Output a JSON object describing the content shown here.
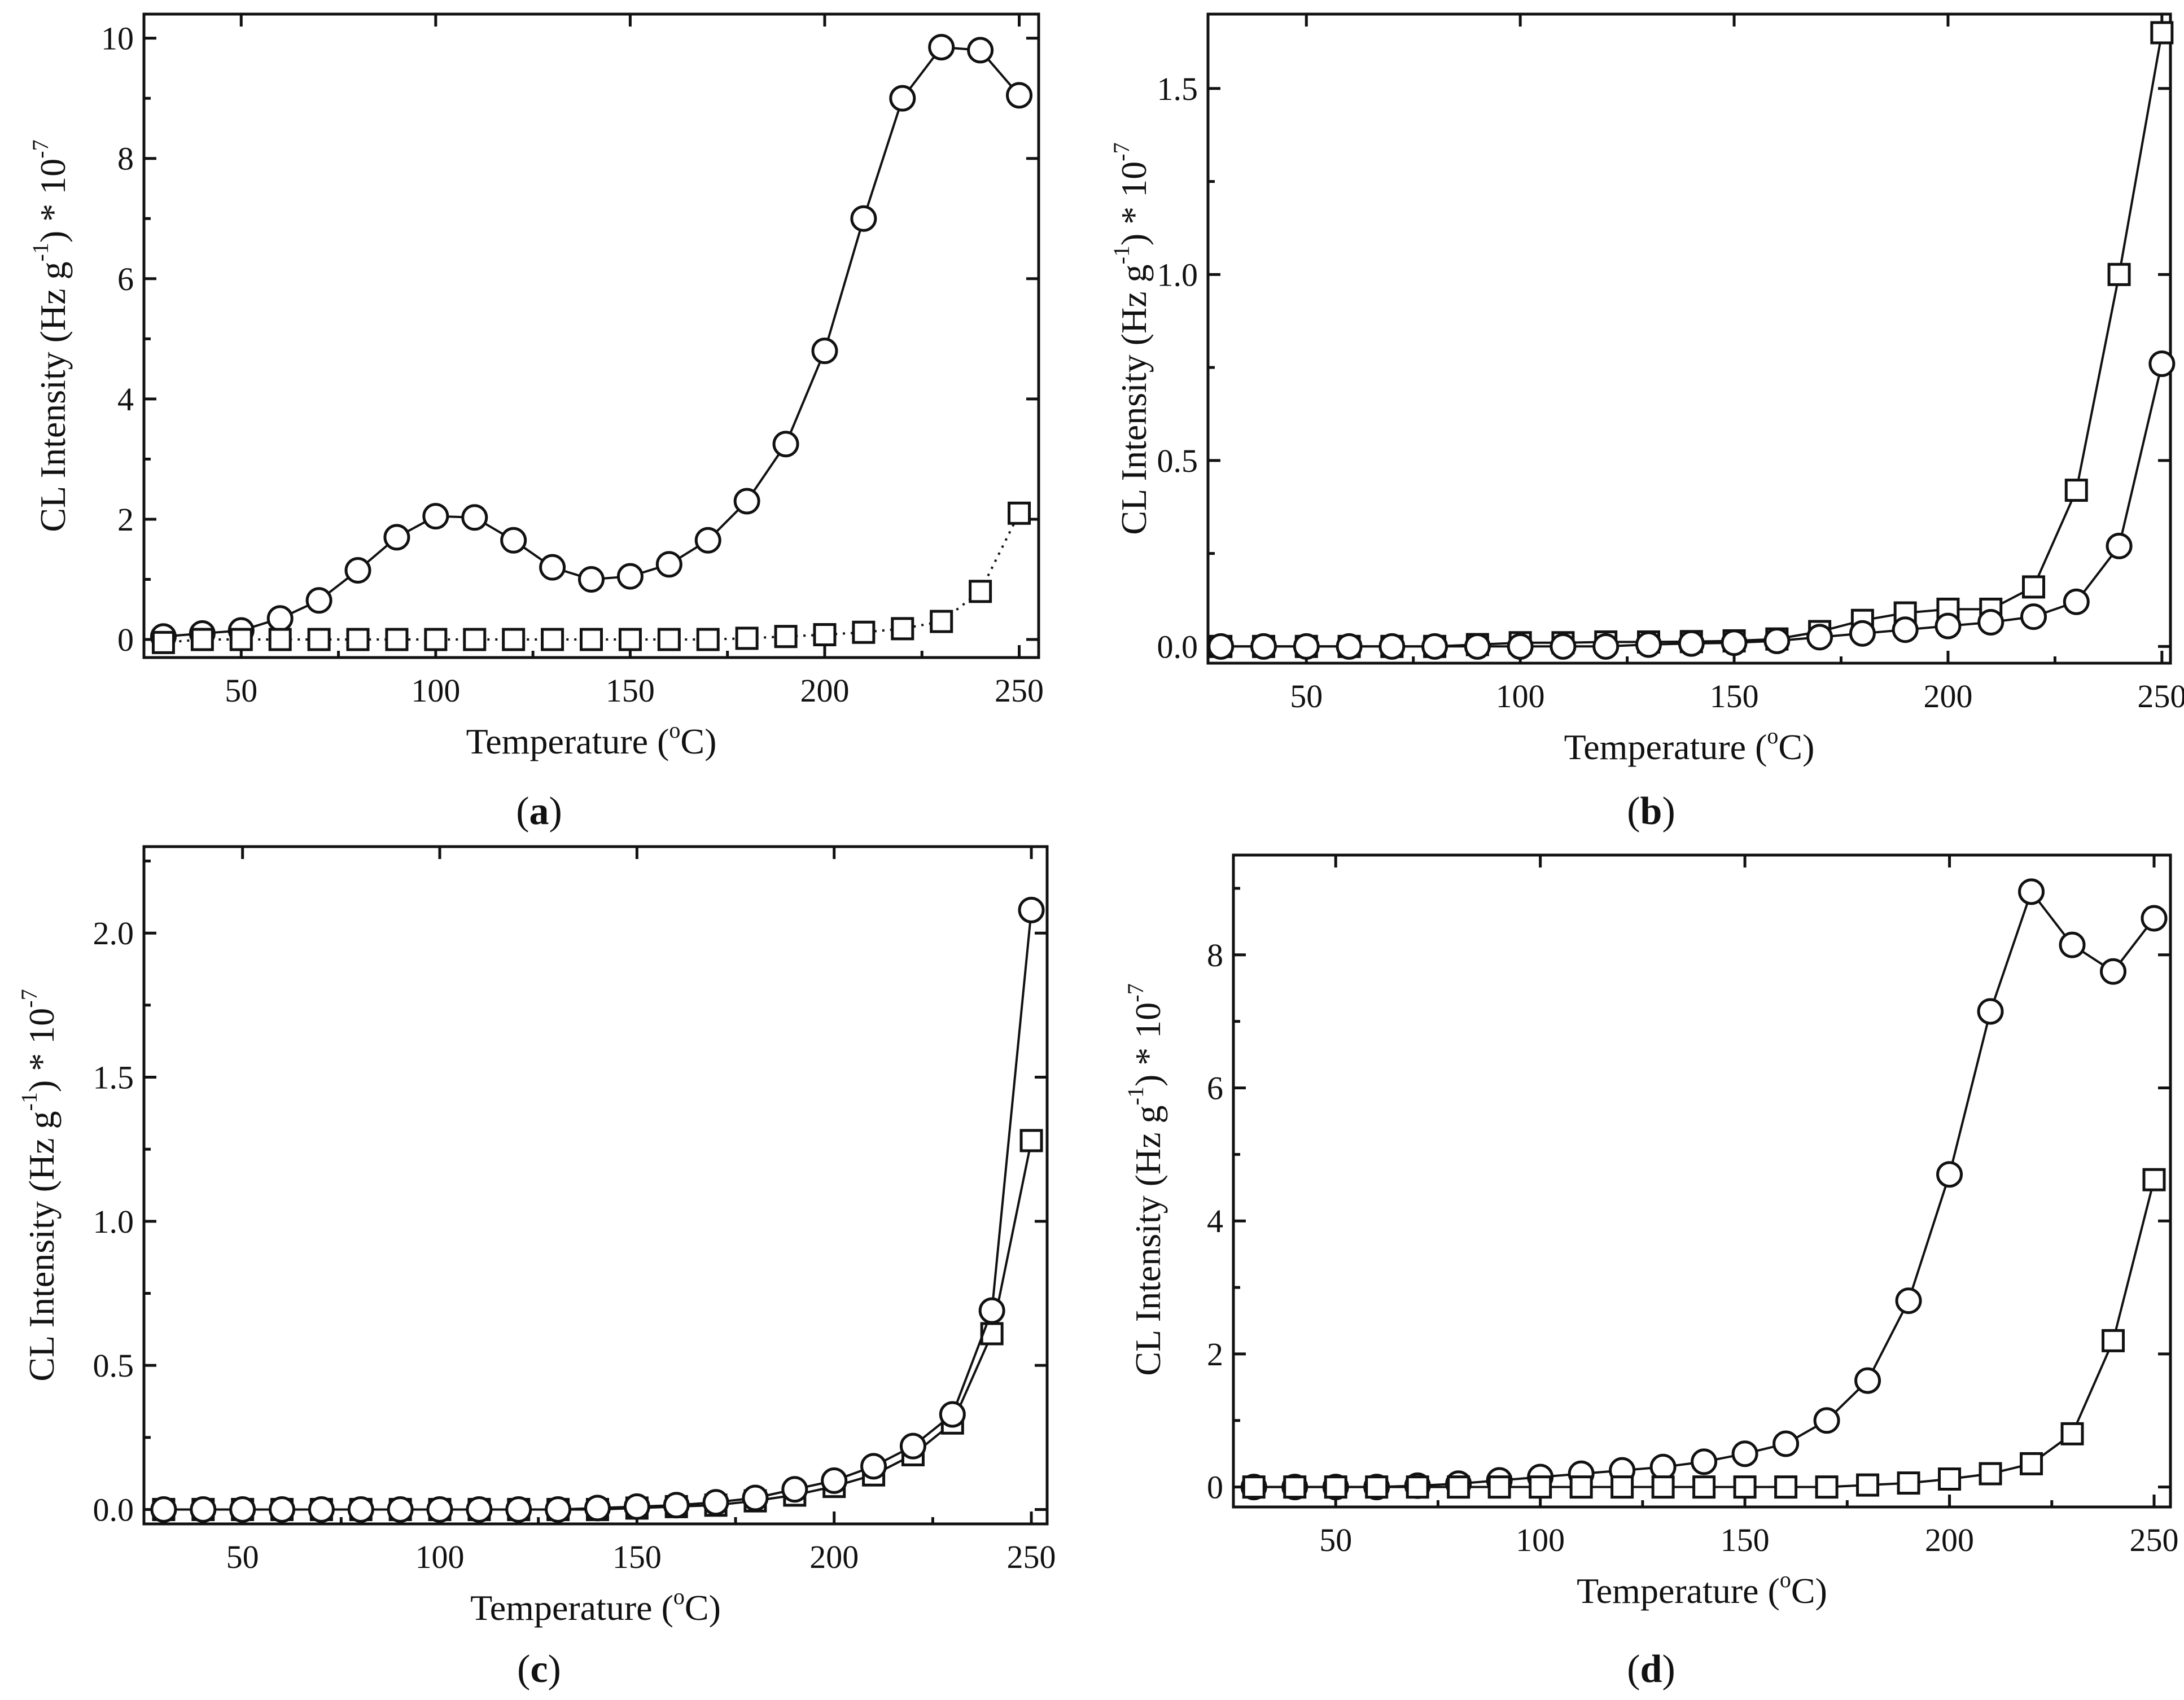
{
  "figure": {
    "panels": [
      {
        "id": "a",
        "label_prefix": "(",
        "label_letter": "a",
        "label_suffix": ")"
      },
      {
        "id": "b",
        "label_prefix": "(",
        "label_letter": "b",
        "label_suffix": ")"
      },
      {
        "id": "c",
        "label_prefix": "(",
        "label_letter": "c",
        "label_suffix": ")"
      },
      {
        "id": "d",
        "label_prefix": "(",
        "label_letter": "d",
        "label_suffix": ")"
      }
    ]
  },
  "colors": {
    "line": "#111111",
    "marker_fill": "#ffffff",
    "background": "#ffffff"
  },
  "chart_data": [
    {
      "type": "line",
      "panel": "a",
      "xlabel": {
        "main": "Temperature (",
        "sup": "o",
        "tail": "C)"
      },
      "ylabel": {
        "main": "CL Intensity (Hz g",
        "sup": "-1",
        "mid": ") * 10",
        "sup2": "-7"
      },
      "xlim": [
        25,
        255
      ],
      "ylim": [
        -0.3,
        10.4
      ],
      "xticks": [
        50,
        100,
        150,
        200,
        250
      ],
      "xtick_labels": [
        "50",
        "100",
        "150",
        "200",
        "250"
      ],
      "yticks": [
        0,
        2,
        4,
        6,
        8,
        10
      ],
      "ytick_labels": [
        "0",
        "2",
        "4",
        "6",
        "8",
        "10"
      ],
      "x": [
        30,
        40,
        50,
        60,
        70,
        80,
        90,
        100,
        110,
        120,
        130,
        140,
        150,
        160,
        170,
        180,
        190,
        200,
        210,
        220,
        230,
        240,
        250
      ],
      "series": [
        {
          "name": "circles",
          "marker": "circle",
          "line": "solid",
          "values": [
            0.05,
            0.1,
            0.15,
            0.35,
            0.65,
            1.15,
            1.7,
            2.05,
            2.03,
            1.65,
            1.2,
            1.0,
            1.05,
            1.25,
            1.65,
            2.3,
            3.25,
            4.8,
            7.0,
            9.0,
            9.85,
            9.8,
            9.05
          ]
        },
        {
          "name": "squares",
          "marker": "square",
          "line": "dotted",
          "values": [
            -0.05,
            0.0,
            0.0,
            0.0,
            0.0,
            0.0,
            0.0,
            0.0,
            0.0,
            0.0,
            0.0,
            0.0,
            0.0,
            0.0,
            0.0,
            0.02,
            0.05,
            0.08,
            0.12,
            0.18,
            0.3,
            0.8,
            2.1
          ]
        }
      ]
    },
    {
      "type": "line",
      "panel": "b",
      "xlabel": {
        "main": "Temperature (",
        "sup": "o",
        "tail": "C)"
      },
      "ylabel": {
        "main": "CL Intensity (Hz g",
        "sup": "-1",
        "mid": ") * 10",
        "sup2": "-7"
      },
      "xlim": [
        27,
        252
      ],
      "ylim": [
        -0.045,
        1.7
      ],
      "xticks": [
        50,
        100,
        150,
        200,
        250
      ],
      "xtick_labels": [
        "50",
        "100",
        "150",
        "200",
        "250"
      ],
      "yticks": [
        0.0,
        0.5,
        1.0,
        1.5
      ],
      "ytick_labels": [
        "0.0",
        "0.5",
        "1.0",
        "1.5"
      ],
      "x": [
        30,
        40,
        50,
        60,
        70,
        80,
        90,
        100,
        110,
        120,
        130,
        140,
        150,
        160,
        170,
        180,
        190,
        200,
        210,
        220,
        230,
        240,
        250
      ],
      "series": [
        {
          "name": "squares",
          "marker": "square",
          "line": "solid",
          "values": [
            0.0,
            0.0,
            0.0,
            0.0,
            0.0,
            0.0,
            0.005,
            0.01,
            0.01,
            0.012,
            0.012,
            0.013,
            0.015,
            0.02,
            0.04,
            0.07,
            0.09,
            0.1,
            0.1,
            0.16,
            0.42,
            1.0,
            1.65
          ]
        },
        {
          "name": "circles",
          "marker": "circle",
          "line": "solid",
          "values": [
            0.0,
            0.0,
            0.0,
            0.0,
            0.0,
            0.0,
            0.0,
            0.0,
            0.0,
            0.0,
            0.005,
            0.008,
            0.01,
            0.015,
            0.025,
            0.035,
            0.045,
            0.055,
            0.065,
            0.08,
            0.12,
            0.27,
            0.76
          ]
        }
      ]
    },
    {
      "type": "line",
      "panel": "c",
      "xlabel": {
        "main": "Temperature (",
        "sup": "o",
        "tail": "C)"
      },
      "ylabel": {
        "main": "CL Intensity (Hz g",
        "sup": "-1",
        "mid": ") * 10",
        "sup2": "-7"
      },
      "xlim": [
        25,
        254
      ],
      "ylim": [
        -0.05,
        2.3
      ],
      "xticks": [
        50,
        100,
        150,
        200,
        250
      ],
      "xtick_labels": [
        "50",
        "100",
        "150",
        "200",
        "250"
      ],
      "yticks": [
        0.0,
        0.5,
        1.0,
        1.5,
        2.0
      ],
      "ytick_labels": [
        "0.0",
        "0.5",
        "1.0",
        "1.5",
        "2.0"
      ],
      "x": [
        30,
        40,
        50,
        60,
        70,
        80,
        90,
        100,
        110,
        120,
        130,
        140,
        150,
        160,
        170,
        180,
        190,
        200,
        210,
        220,
        230,
        240,
        250
      ],
      "series": [
        {
          "name": "squares",
          "marker": "square",
          "line": "solid",
          "values": [
            0.0,
            0.0,
            0.0,
            0.0,
            0.0,
            0.0,
            0.0,
            0.0,
            0.0,
            0.0,
            0.0,
            0.0,
            0.005,
            0.01,
            0.015,
            0.03,
            0.05,
            0.08,
            0.12,
            0.19,
            0.3,
            0.61,
            1.28
          ]
        },
        {
          "name": "circles",
          "marker": "circle",
          "line": "solid",
          "values": [
            0.0,
            0.0,
            0.0,
            0.0,
            0.0,
            0.0,
            0.0,
            0.0,
            0.0,
            0.0,
            0.0,
            0.005,
            0.01,
            0.015,
            0.025,
            0.04,
            0.07,
            0.1,
            0.15,
            0.22,
            0.33,
            0.69,
            2.08
          ]
        }
      ]
    },
    {
      "type": "line",
      "panel": "d",
      "xlabel": {
        "main": "Temperature (",
        "sup": "o",
        "tail": "C)"
      },
      "ylabel": {
        "main": "CL Intensity (Hz g",
        "sup": "-1",
        "mid": ") * 10",
        "sup2": "-7"
      },
      "xlim": [
        25,
        254
      ],
      "ylim": [
        -0.3,
        9.5
      ],
      "xticks": [
        50,
        100,
        150,
        200,
        250
      ],
      "xtick_labels": [
        "50",
        "100",
        "150",
        "200",
        "250"
      ],
      "yticks": [
        0,
        2,
        4,
        6,
        8
      ],
      "ytick_labels": [
        "0",
        "2",
        "4",
        "6",
        "8"
      ],
      "x": [
        30,
        40,
        50,
        60,
        70,
        80,
        90,
        100,
        110,
        120,
        130,
        140,
        150,
        160,
        170,
        180,
        190,
        200,
        210,
        220,
        230,
        240,
        250
      ],
      "series": [
        {
          "name": "circles",
          "marker": "circle",
          "line": "solid",
          "values": [
            0.0,
            0.0,
            0.0,
            0.0,
            0.02,
            0.05,
            0.1,
            0.15,
            0.2,
            0.25,
            0.3,
            0.38,
            0.5,
            0.65,
            1.0,
            1.6,
            2.8,
            4.7,
            7.15,
            8.95,
            8.15,
            7.75,
            8.55
          ]
        },
        {
          "name": "squares",
          "marker": "square",
          "line": "solid",
          "values": [
            0.0,
            0.0,
            0.0,
            0.0,
            0.0,
            0.0,
            0.0,
            0.0,
            0.0,
            0.0,
            0.0,
            0.0,
            0.0,
            0.0,
            0.0,
            0.03,
            0.06,
            0.12,
            0.2,
            0.35,
            0.8,
            2.2,
            4.62
          ]
        }
      ]
    }
  ]
}
